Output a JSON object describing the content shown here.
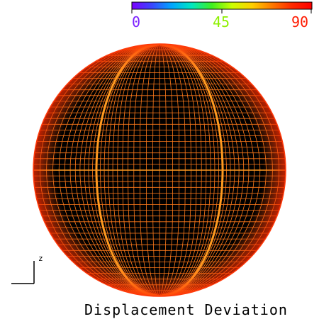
{
  "colorbar": {
    "min_label": "0",
    "mid_label": "45",
    "max_label": "90",
    "min_color": "#7b1fff",
    "mid_color": "#8df000",
    "max_color": "#ff1a00",
    "gradient": [
      "#7a00ff",
      "#3a46ff",
      "#00a6ff",
      "#00e8c0",
      "#3ff020",
      "#ccff00",
      "#ffd000",
      "#ff7a00",
      "#ff2a00",
      "#ff0000"
    ]
  },
  "view": {
    "title": "Displacement Deviation",
    "axis_label": "z",
    "background": "#000000",
    "mesh_color": "#ff7a1a",
    "rim_color": "#ff3a0a",
    "seam_color": "#ff9a20"
  }
}
